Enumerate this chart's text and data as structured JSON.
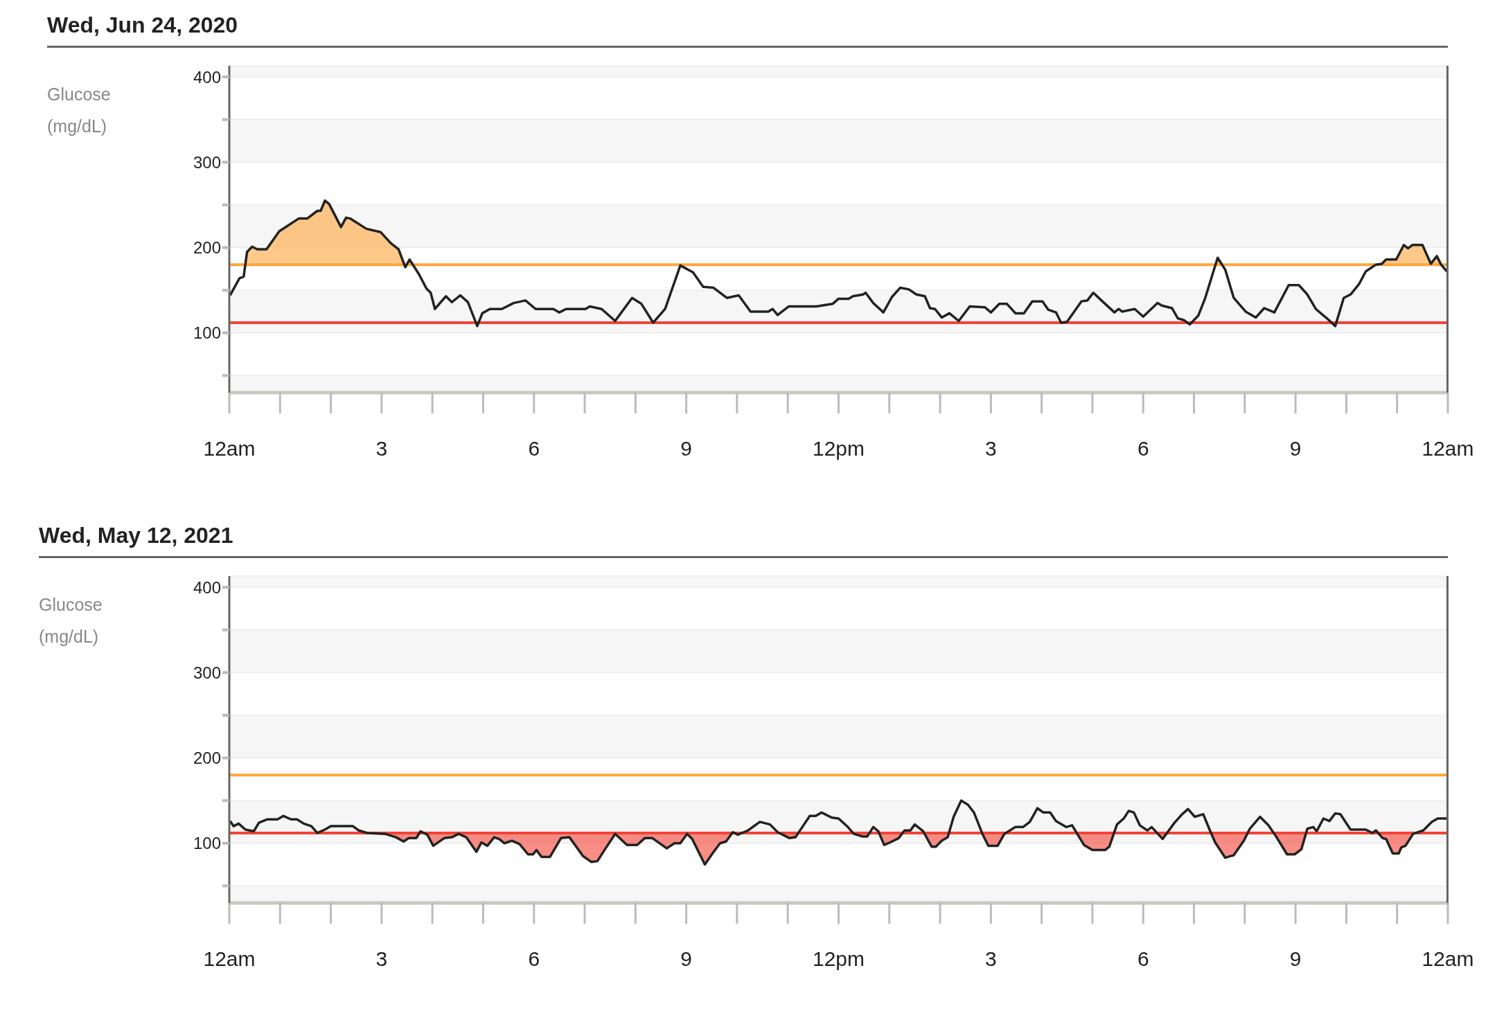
{
  "chart_data": [
    {
      "type": "line",
      "title": "Wed, Jun 24, 2020",
      "ylabel": "Glucose (mg/dL)",
      "x": [
        "2020-06-24T00:01",
        "2020-06-24T00:12",
        "2020-06-24T00:17",
        "2020-06-24T00:21",
        "2020-06-24T00:27",
        "2020-06-24T00:33",
        "2020-06-24T00:44",
        "2020-06-24T00:59",
        "2020-06-24T01:22",
        "2020-06-24T01:32",
        "2020-06-24T01:44",
        "2020-06-24T01:48",
        "2020-06-24T01:53",
        "2020-06-24T01:58",
        "2020-06-24T02:12",
        "2020-06-24T02:18",
        "2020-06-24T02:23",
        "2020-06-24T02:42",
        "2020-06-24T02:59",
        "2020-06-24T03:11",
        "2020-06-24T03:20",
        "2020-06-24T03:28",
        "2020-06-24T03:33",
        "2020-06-24T03:44",
        "2020-06-24T03:53",
        "2020-06-24T03:58",
        "2020-06-24T04:03",
        "2020-06-24T04:16",
        "2020-06-24T04:23",
        "2020-06-24T04:33",
        "2020-06-24T04:42",
        "2020-06-24T04:53",
        "2020-06-24T04:59",
        "2020-06-24T05:08",
        "2020-06-24T05:22",
        "2020-06-24T05:36",
        "2020-06-24T05:50",
        "2020-06-24T06:02",
        "2020-06-24T06:23",
        "2020-06-24T06:30",
        "2020-06-24T06:38",
        "2020-06-24T07:01",
        "2020-06-24T07:06",
        "2020-06-24T07:20",
        "2020-06-24T07:36",
        "2020-06-24T07:56",
        "2020-06-24T08:07",
        "2020-06-24T08:21",
        "2020-06-24T08:35",
        "2020-06-24T08:53",
        "2020-06-24T09:08",
        "2020-06-24T09:20",
        "2020-06-24T09:32",
        "2020-06-24T09:48",
        "2020-06-24T10:02",
        "2020-06-24T10:16",
        "2020-06-24T10:37",
        "2020-06-24T10:42",
        "2020-06-24T10:48",
        "2020-06-24T11:01",
        "2020-06-24T11:34",
        "2020-06-24T11:53",
        "2020-06-24T12:00",
        "2020-06-24T12:12",
        "2020-06-24T12:17",
        "2020-06-24T12:29",
        "2020-06-24T12:32",
        "2020-06-24T12:41",
        "2020-06-24T12:53",
        "2020-06-24T13:03",
        "2020-06-24T13:13",
        "2020-06-24T13:23",
        "2020-06-24T13:32",
        "2020-06-24T13:42",
        "2020-06-24T13:48",
        "2020-06-24T13:54",
        "2020-06-24T14:02",
        "2020-06-24T14:11",
        "2020-06-24T14:22",
        "2020-06-24T14:35",
        "2020-06-24T14:53",
        "2020-06-24T15:00",
        "2020-06-24T15:10",
        "2020-06-24T15:19",
        "2020-06-24T15:29",
        "2020-06-24T15:39",
        "2020-06-24T15:49",
        "2020-06-24T16:01",
        "2020-06-24T16:08",
        "2020-06-24T16:17",
        "2020-06-24T16:23",
        "2020-06-24T16:30",
        "2020-06-24T16:47",
        "2020-06-24T16:54",
        "2020-06-24T17:01",
        "2020-06-24T17:14",
        "2020-06-24T17:26",
        "2020-06-24T17:31",
        "2020-06-24T17:35",
        "2020-06-24T17:50",
        "2020-06-24T18:00",
        "2020-06-24T18:17",
        "2020-06-24T18:22",
        "2020-06-24T18:34",
        "2020-06-24T18:41",
        "2020-06-24T18:48",
        "2020-06-24T18:55",
        "2020-06-24T19:05",
        "2020-06-24T19:13",
        "2020-06-24T19:28",
        "2020-06-24T19:37",
        "2020-06-24T19:47",
        "2020-06-24T20:01",
        "2020-06-24T20:13",
        "2020-06-24T20:23",
        "2020-06-24T20:35",
        "2020-06-24T20:52",
        "2020-06-24T21:04",
        "2020-06-24T21:14",
        "2020-06-24T21:24",
        "2020-06-24T21:36",
        "2020-06-24T21:47",
        "2020-06-24T21:57",
        "2020-06-24T22:05",
        "2020-06-24T22:15",
        "2020-06-24T22:23",
        "2020-06-24T22:35",
        "2020-06-24T22:42",
        "2020-06-24T22:47",
        "2020-06-24T22:59",
        "2020-06-24T23:08",
        "2020-06-24T23:13",
        "2020-06-24T23:18",
        "2020-06-24T23:30",
        "2020-06-24T23:40",
        "2020-06-24T23:47",
        "2020-06-24T23:52",
        "2020-06-24T23:59"
      ],
      "series": [
        {
          "color": "#222222",
          "values": [
            144,
            164,
            166,
            195,
            201,
            198,
            198,
            219,
            234,
            234,
            243,
            243,
            255,
            251,
            224,
            235,
            234,
            222,
            218,
            205,
            198,
            177,
            186,
            169,
            152,
            147,
            128,
            143,
            136,
            144,
            136,
            108,
            123,
            128,
            128,
            135,
            138,
            128,
            128,
            124,
            128,
            128,
            131,
            128,
            114,
            141,
            134,
            112,
            128,
            179,
            171,
            154,
            153,
            141,
            144,
            125,
            125,
            128,
            121,
            131,
            131,
            134,
            140,
            140,
            143,
            145,
            147,
            135,
            124,
            142,
            153,
            151,
            145,
            143,
            129,
            128,
            118,
            123,
            114,
            131,
            130,
            124,
            134,
            134,
            123,
            123,
            137,
            137,
            127,
            124,
            112,
            113,
            137,
            138,
            147,
            135,
            124,
            128,
            125,
            128,
            119,
            135,
            132,
            129,
            117,
            115,
            110,
            120,
            140,
            188,
            174,
            141,
            125,
            118,
            129,
            124,
            156,
            156,
            145,
            128,
            118,
            108,
            141,
            145,
            157,
            172,
            180,
            181,
            186,
            186,
            203,
            199,
            203,
            203,
            181,
            190,
            180,
            172
          ]
        }
      ],
      "xlim": [
        "2020-06-24T00:00",
        "2020-06-25T00:00"
      ],
      "xticks": [
        {
          "value": "2020-06-24T00:00",
          "label": "12am"
        },
        {
          "value": "2020-06-24T03:00",
          "label": "3"
        },
        {
          "value": "2020-06-24T06:00",
          "label": "6"
        },
        {
          "value": "2020-06-24T09:00",
          "label": "9"
        },
        {
          "value": "2020-06-24T12:00",
          "label": "12pm"
        },
        {
          "value": "2020-06-24T15:00",
          "label": "3"
        },
        {
          "value": "2020-06-24T18:00",
          "label": "6"
        },
        {
          "value": "2020-06-24T21:00",
          "label": "9"
        },
        {
          "value": "2020-06-25T00:00",
          "label": "12am"
        }
      ],
      "ylim": [
        30,
        413
      ],
      "yticks": [
        {
          "value": 50,
          "label": null
        },
        100,
        {
          "value": 150,
          "label": null
        },
        200,
        {
          "value": 250,
          "label": null
        },
        300,
        {
          "value": 350,
          "label": null
        },
        400
      ],
      "ref_lines": [
        {
          "axis": "y",
          "value": 180,
          "color": "#ffa53a"
        },
        {
          "axis": "y",
          "value": 112,
          "color": "#f44336"
        }
      ],
      "grid": "y"
    },
    {
      "type": "line",
      "title": "Wed, May 12, 2021",
      "ylabel": "Glucose (mg/dL)",
      "x": [
        "2021-05-12T00:01",
        "2021-05-12T00:05",
        "2021-05-12T00:11",
        "2021-05-12T00:19",
        "2021-05-12T00:29",
        "2021-05-12T00:35",
        "2021-05-12T00:45",
        "2021-05-12T00:57",
        "2021-05-12T01:04",
        "2021-05-12T01:13",
        "2021-05-12T01:20",
        "2021-05-12T01:28",
        "2021-05-12T01:37",
        "2021-05-12T01:44",
        "2021-05-12T01:53",
        "2021-05-12T02:00",
        "2021-05-12T02:26",
        "2021-05-12T02:33",
        "2021-05-12T02:43",
        "2021-05-12T03:04",
        "2021-05-12T03:17",
        "2021-05-12T03:26",
        "2021-05-12T03:32",
        "2021-05-12T03:41",
        "2021-05-12T03:46",
        "2021-05-12T03:54",
        "2021-05-12T04:01",
        "2021-05-12T04:14",
        "2021-05-12T04:23",
        "2021-05-12T04:31",
        "2021-05-12T04:40",
        "2021-05-12T04:52",
        "2021-05-12T04:58",
        "2021-05-12T05:05",
        "2021-05-12T05:13",
        "2021-05-12T05:19",
        "2021-05-12T05:25",
        "2021-05-12T05:34",
        "2021-05-12T05:43",
        "2021-05-12T05:53",
        "2021-05-12T05:59",
        "2021-05-12T06:03",
        "2021-05-12T06:09",
        "2021-05-12T06:19",
        "2021-05-12T06:32",
        "2021-05-12T06:42",
        "2021-05-12T06:58",
        "2021-05-12T07:08",
        "2021-05-12T07:15",
        "2021-05-12T07:24",
        "2021-05-12T07:36",
        "2021-05-12T07:50",
        "2021-05-12T08:02",
        "2021-05-12T08:11",
        "2021-05-12T08:20",
        "2021-05-12T08:37",
        "2021-05-12T08:46",
        "2021-05-12T08:53",
        "2021-05-12T09:01",
        "2021-05-12T09:07",
        "2021-05-12T09:22",
        "2021-05-12T09:31",
        "2021-05-12T09:40",
        "2021-05-12T09:47",
        "2021-05-12T09:55",
        "2021-05-12T10:01",
        "2021-05-12T10:13",
        "2021-05-12T10:27",
        "2021-05-12T10:39",
        "2021-05-12T10:48",
        "2021-05-12T11:02",
        "2021-05-12T11:09",
        "2021-05-12T11:26",
        "2021-05-12T11:33",
        "2021-05-12T11:40",
        "2021-05-12T11:52",
        "2021-05-12T12:00",
        "2021-05-12T12:11",
        "2021-05-12T12:18",
        "2021-05-12T12:28",
        "2021-05-12T12:34",
        "2021-05-12T12:41",
        "2021-05-12T12:47",
        "2021-05-12T12:54",
        "2021-05-12T13:01",
        "2021-05-12T13:11",
        "2021-05-12T13:18",
        "2021-05-12T13:25",
        "2021-05-12T13:30",
        "2021-05-12T13:40",
        "2021-05-12T13:50",
        "2021-05-12T13:55",
        "2021-05-12T14:02",
        "2021-05-12T14:09",
        "2021-05-12T14:16",
        "2021-05-12T14:25",
        "2021-05-12T14:33",
        "2021-05-12T14:40",
        "2021-05-12T14:50",
        "2021-05-12T14:57",
        "2021-05-12T15:08",
        "2021-05-12T15:16",
        "2021-05-12T15:29",
        "2021-05-12T15:38",
        "2021-05-12T15:46",
        "2021-05-12T15:55",
        "2021-05-12T16:02",
        "2021-05-12T16:10",
        "2021-05-12T16:17",
        "2021-05-12T16:29",
        "2021-05-12T16:36",
        "2021-05-12T16:50",
        "2021-05-12T17:00",
        "2021-05-12T17:15",
        "2021-05-12T17:20",
        "2021-05-12T17:29",
        "2021-05-12T17:37",
        "2021-05-12T17:43",
        "2021-05-12T17:49",
        "2021-05-12T17:56",
        "2021-05-12T18:05",
        "2021-05-12T18:10",
        "2021-05-12T18:23",
        "2021-05-12T18:37",
        "2021-05-12T18:46",
        "2021-05-12T18:53",
        "2021-05-12T19:01",
        "2021-05-12T19:11",
        "2021-05-12T19:18",
        "2021-05-12T19:25",
        "2021-05-12T19:37",
        "2021-05-12T19:47",
        "2021-05-12T19:59",
        "2021-05-12T20:06",
        "2021-05-12T20:18",
        "2021-05-12T20:28",
        "2021-05-12T20:37",
        "2021-05-12T20:50",
        "2021-05-12T20:59",
        "2021-05-12T21:07",
        "2021-05-12T21:14",
        "2021-05-12T21:21",
        "2021-05-12T21:25",
        "2021-05-12T21:33",
        "2021-05-12T21:40",
        "2021-05-12T21:47",
        "2021-05-12T21:53",
        "2021-05-12T22:05",
        "2021-05-12T22:23",
        "2021-05-12T22:31",
        "2021-05-12T22:35",
        "2021-05-12T22:43",
        "2021-05-12T22:47",
        "2021-05-12T22:55",
        "2021-05-12T23:02",
        "2021-05-12T23:05",
        "2021-05-12T23:10",
        "2021-05-12T23:19",
        "2021-05-12T23:31",
        "2021-05-12T23:41",
        "2021-05-12T23:48",
        "2021-05-12T23:59"
      ],
      "series": [
        {
          "color": "#222222",
          "values": [
            126,
            120,
            123,
            116,
            114,
            124,
            128,
            128,
            132,
            128,
            128,
            123,
            120,
            112,
            116,
            120,
            120,
            115,
            112,
            111,
            107,
            102,
            106,
            106,
            114,
            110,
            97,
            106,
            107,
            111,
            107,
            90,
            101,
            97,
            107,
            105,
            100,
            103,
            99,
            87,
            87,
            92,
            84,
            84,
            106,
            107,
            85,
            78,
            79,
            93,
            111,
            98,
            98,
            106,
            106,
            94,
            100,
            100,
            111,
            105,
            75,
            88,
            100,
            102,
            113,
            110,
            115,
            125,
            122,
            113,
            106,
            107,
            132,
            132,
            136,
            130,
            129,
            119,
            111,
            108,
            108,
            119,
            114,
            98,
            101,
            106,
            115,
            115,
            122,
            114,
            96,
            96,
            103,
            107,
            131,
            150,
            145,
            136,
            111,
            97,
            97,
            111,
            119,
            119,
            125,
            141,
            136,
            136,
            126,
            119,
            121,
            98,
            92,
            92,
            96,
            122,
            129,
            138,
            136,
            121,
            115,
            119,
            105,
            124,
            134,
            140,
            131,
            134,
            117,
            101,
            83,
            86,
            103,
            117,
            131,
            121,
            108,
            87,
            87,
            93,
            117,
            119,
            114,
            129,
            126,
            135,
            134,
            116,
            116,
            112,
            115,
            106,
            105,
            88,
            88,
            95,
            97,
            111,
            115,
            125,
            129,
            129
          ]
        }
      ],
      "xlim": [
        "2021-05-12T00:00",
        "2021-05-13T00:00"
      ],
      "xticks": [
        {
          "value": "2021-05-12T00:00",
          "label": "12am"
        },
        {
          "value": "2021-05-12T03:00",
          "label": "3"
        },
        {
          "value": "2021-05-12T06:00",
          "label": "6"
        },
        {
          "value": "2021-05-12T09:00",
          "label": "9"
        },
        {
          "value": "2021-05-12T12:00",
          "label": "12pm"
        },
        {
          "value": "2021-05-12T15:00",
          "label": "3"
        },
        {
          "value": "2021-05-12T18:00",
          "label": "6"
        },
        {
          "value": "2021-05-12T21:00",
          "label": "9"
        },
        {
          "value": "2021-05-13T00:00",
          "label": "12am"
        }
      ],
      "ylim": [
        30,
        413
      ],
      "yticks": [
        {
          "value": 50,
          "label": null
        },
        100,
        {
          "value": 150,
          "label": null
        },
        200,
        {
          "value": 250,
          "label": null
        },
        300,
        {
          "value": 350,
          "label": null
        },
        400
      ],
      "ref_lines": [
        {
          "axis": "y",
          "value": 180,
          "color": "#ffa53a"
        },
        {
          "axis": "y",
          "value": 112,
          "color": "#f44336"
        }
      ],
      "grid": "y"
    }
  ]
}
